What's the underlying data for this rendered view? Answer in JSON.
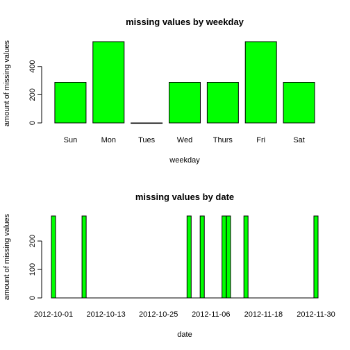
{
  "colors": {
    "bar_fill": "#00ff00",
    "bar_stroke": "#000000",
    "axis": "#000000",
    "background": "#ffffff"
  },
  "chart_data": [
    {
      "type": "bar",
      "title": "missing values by weekday",
      "xlabel": "weekday",
      "ylabel": "amount of missing values",
      "categories": [
        "Sun",
        "Mon",
        "Tues",
        "Wed",
        "Thurs",
        "Fri",
        "Sat"
      ],
      "values": [
        288,
        576,
        0,
        288,
        288,
        576,
        288
      ],
      "ylim": [
        0,
        576
      ],
      "yticks": [
        0,
        200,
        400
      ],
      "grid": false,
      "legend": "none"
    },
    {
      "type": "bar",
      "title": "missing values by date",
      "xlabel": "date",
      "ylabel": "amount of missing values",
      "x": [
        "2012-10-01",
        "2012-10-08",
        "2012-11-01",
        "2012-11-04",
        "2012-11-09",
        "2012-11-10",
        "2012-11-14",
        "2012-11-30"
      ],
      "values": [
        288,
        288,
        288,
        288,
        288,
        288,
        288,
        288
      ],
      "xlim": [
        "2012-10-01",
        "2012-11-30"
      ],
      "xticks": [
        "2012-10-01",
        "2012-10-13",
        "2012-10-25",
        "2012-11-06",
        "2012-11-18",
        "2012-11-30"
      ],
      "ylim": [
        0,
        288
      ],
      "yticks": [
        0,
        100,
        200
      ],
      "grid": false,
      "legend": "none"
    }
  ]
}
